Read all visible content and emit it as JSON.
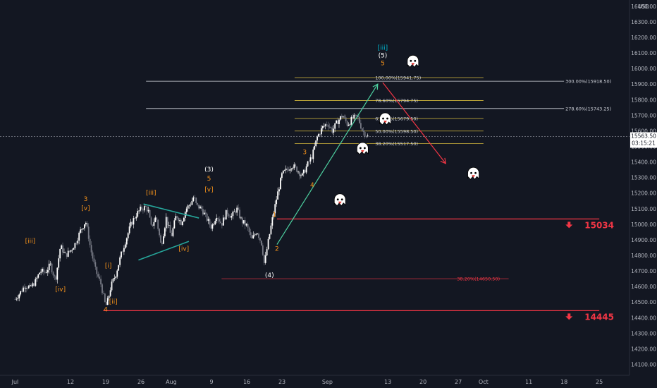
{
  "chart_data": {
    "type": "candlestick",
    "price_axis": {
      "unit": "USD",
      "ticks": [
        14100,
        14200,
        14300,
        14400,
        14500,
        14600,
        14700,
        14800,
        14900,
        15000,
        15100,
        15200,
        15300,
        15400,
        15500,
        15600,
        15700,
        15800,
        15900,
        16000,
        16100,
        16200,
        16300,
        16400
      ],
      "tick_labels": [
        "14100.00",
        "14200.00",
        "14300.00",
        "14400.00",
        "14500.00",
        "14600.00",
        "14700.00",
        "14800.00",
        "14900.00",
        "15000.00",
        "15100.00",
        "15200.00",
        "15300.00",
        "15400.00",
        "15500.00",
        "15600.00",
        "15700.00",
        "15800.00",
        "15900.00",
        "16000.00",
        "16100.00",
        "16200.00",
        "16300.00",
        "16400.00"
      ],
      "ylim": [
        14030,
        16440
      ]
    },
    "time_axis": {
      "labels": [
        "Jul",
        "12",
        "19",
        "26",
        "Aug",
        "9",
        "16",
        "23",
        "Sep",
        "13",
        "20",
        "27",
        "Oct",
        "11",
        "18",
        "25"
      ],
      "label_days": [
        0,
        11,
        18,
        25,
        31,
        39,
        46,
        53,
        62,
        74,
        81,
        88,
        93,
        102,
        109,
        116
      ],
      "xlim": [
        -3,
        122
      ]
    },
    "current_price": {
      "label": "15563.50",
      "value": 15563.5,
      "countdown": "03:15:21"
    },
    "series": [
      {
        "values": [
          [
            0,
            14520
          ],
          [
            1,
            14560
          ],
          [
            2,
            14610
          ],
          [
            3,
            14590
          ],
          [
            4,
            14630
          ],
          [
            5,
            14700
          ],
          [
            6,
            14690
          ],
          [
            7,
            14740
          ],
          [
            8,
            14640
          ],
          [
            9,
            14860
          ],
          [
            10,
            14800
          ],
          [
            11,
            14830
          ],
          [
            12,
            14880
          ],
          [
            13,
            14960
          ],
          [
            14,
            15020
          ],
          [
            14.5,
            14940
          ],
          [
            15,
            14840
          ],
          [
            16,
            14700
          ],
          [
            17,
            14620
          ],
          [
            18,
            14470
          ],
          [
            18.5,
            14520
          ],
          [
            19,
            14600
          ],
          [
            20,
            14680
          ],
          [
            21,
            14800
          ],
          [
            22,
            14900
          ],
          [
            23,
            15000
          ],
          [
            24,
            15060
          ],
          [
            25,
            15100
          ],
          [
            26,
            15110
          ],
          [
            26.5,
            15080
          ],
          [
            27,
            14980
          ],
          [
            28,
            15050
          ],
          [
            29,
            14860
          ],
          [
            30,
            15040
          ],
          [
            31,
            14920
          ],
          [
            32,
            15060
          ],
          [
            33,
            15010
          ],
          [
            34,
            15100
          ],
          [
            35,
            15140
          ],
          [
            35.5,
            15180
          ],
          [
            36,
            15120
          ],
          [
            37,
            15100
          ],
          [
            38,
            15040
          ],
          [
            39,
            14980
          ],
          [
            40,
            15060
          ],
          [
            41,
            15000
          ],
          [
            42,
            15080
          ],
          [
            43,
            15050
          ],
          [
            44,
            15100
          ],
          [
            45,
            15020
          ],
          [
            46,
            14990
          ],
          [
            47,
            14900
          ],
          [
            48,
            14960
          ],
          [
            49,
            14870
          ],
          [
            49.5,
            14740
          ],
          [
            50,
            14840
          ],
          [
            51,
            15020
          ],
          [
            52,
            15180
          ],
          [
            53,
            15320
          ],
          [
            54,
            15350
          ],
          [
            55,
            15380
          ],
          [
            56,
            15350
          ],
          [
            57,
            15310
          ],
          [
            58,
            15380
          ],
          [
            59,
            15440
          ],
          [
            60,
            15560
          ],
          [
            61,
            15620
          ],
          [
            62,
            15650
          ],
          [
            63,
            15600
          ],
          [
            64,
            15660
          ],
          [
            65,
            15700
          ],
          [
            66,
            15640
          ],
          [
            67,
            15680
          ],
          [
            68,
            15690
          ],
          [
            69,
            15600
          ],
          [
            70,
            15563.5
          ]
        ]
      }
    ],
    "fib_levels": [
      {
        "label": "100.00%(15941.75)",
        "value": 15941.75
      },
      {
        "label": "78.60%(15794.75)",
        "value": 15794.75
      },
      {
        "label": "61.80%(15679.50)",
        "value": 15679.5
      },
      {
        "label": "50.00%(15598.50)",
        "value": 15598.5
      },
      {
        "label": "38.20%(15517.50)",
        "value": 15517.5
      }
    ],
    "ext_levels": [
      {
        "label": "300.00%(15918.50)",
        "value": 15918.5
      },
      {
        "label": "278.60%(15743.25)",
        "value": 15743.25
      }
    ],
    "red_fib": {
      "label": "38.20%(14650.50)",
      "value": 14650.5
    },
    "support_levels": [
      {
        "label": "15034",
        "value": 15034
      },
      {
        "label": "14445",
        "value": 14445
      }
    ],
    "wave_labels": [
      {
        "text": "[iii]",
        "x": 3,
        "price": 14880,
        "color": "#f7931a"
      },
      {
        "text": "[iv]",
        "x": 9,
        "price": 14570,
        "color": "#f7931a"
      },
      {
        "text": "3",
        "x": 14,
        "price": 15150,
        "color": "#f7931a"
      },
      {
        "text": "[v]",
        "x": 14,
        "price": 15090,
        "color": "#f7931a"
      },
      {
        "text": "[i]",
        "x": 18.5,
        "price": 14720,
        "color": "#f7931a"
      },
      {
        "text": "[ii]",
        "x": 19.5,
        "price": 14490,
        "color": "#f7931a"
      },
      {
        "text": "4",
        "x": 18,
        "price": 14440,
        "color": "#f7931a"
      },
      {
        "text": "[iii]",
        "x": 27,
        "price": 15190,
        "color": "#f7931a"
      },
      {
        "text": "[iv]",
        "x": 33.5,
        "price": 14830,
        "color": "#f7931a"
      },
      {
        "text": "(3)",
        "x": 38.5,
        "price": 15340,
        "color": "#ffffff"
      },
      {
        "text": "5",
        "x": 38.5,
        "price": 15280,
        "color": "#f7931a"
      },
      {
        "text": "[v]",
        "x": 38.5,
        "price": 15210,
        "color": "#f7931a"
      },
      {
        "text": "1",
        "x": 51.5,
        "price": 15050,
        "color": "#f7931a"
      },
      {
        "text": "2",
        "x": 52,
        "price": 14830,
        "color": "#f7931a"
      },
      {
        "text": "(4)",
        "x": 50.5,
        "price": 14660,
        "color": "#ffffff"
      },
      {
        "text": "3",
        "x": 57.5,
        "price": 15450,
        "color": "#f7931a"
      },
      {
        "text": "4",
        "x": 59,
        "price": 15240,
        "color": "#f7931a"
      },
      {
        "text": "[iii]",
        "x": 73,
        "price": 16120,
        "color": "#00bcd4"
      },
      {
        "text": "(5)",
        "x": 73,
        "price": 16070,
        "color": "#ffffff"
      },
      {
        "text": "5",
        "x": 73,
        "price": 16020,
        "color": "#f7931a"
      }
    ],
    "colors": {
      "background": "#131722",
      "up": "#ffffff",
      "down": "#787b86",
      "fib": "#d4b93c",
      "support": "#f23645",
      "triangle": "#26a69a",
      "up_arrow": "#4dd0a0",
      "down_arrow": "#f23645"
    },
    "icons": [
      "ghost-icon",
      "ghost-icon",
      "ghost-icon",
      "ghost-icon",
      "ghost-icon",
      "ghost-icon"
    ]
  }
}
